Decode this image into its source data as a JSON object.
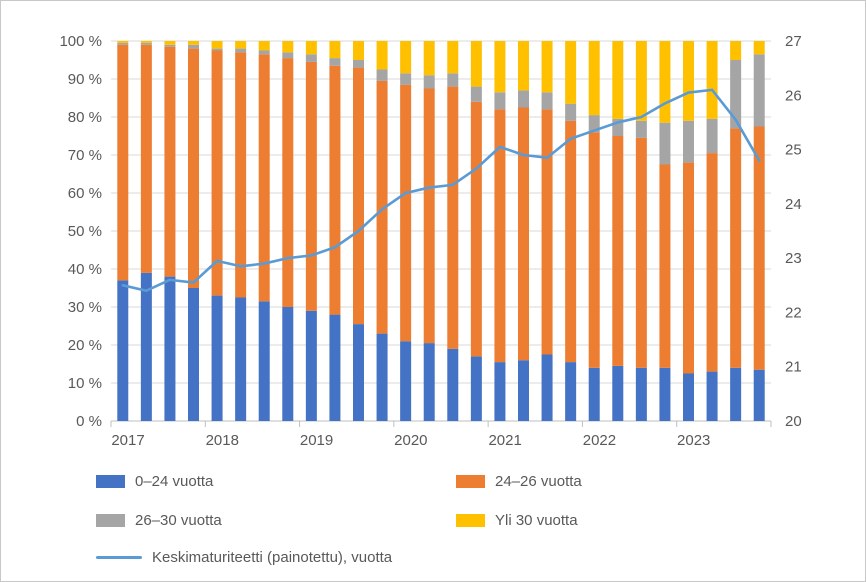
{
  "chart_data": {
    "type": "bar",
    "subtype": "stacked-100-with-secondary-line",
    "title": "",
    "categories": [
      "2017 Q1",
      "2017 Q2",
      "2017 Q3",
      "2017 Q4",
      "2018 Q1",
      "2018 Q2",
      "2018 Q3",
      "2018 Q4",
      "2019 Q1",
      "2019 Q2",
      "2019 Q3",
      "2019 Q4",
      "2020 Q1",
      "2020 Q2",
      "2020 Q3",
      "2020 Q4",
      "2021 Q1",
      "2021 Q2",
      "2021 Q3",
      "2021 Q4",
      "2022 Q1",
      "2022 Q2",
      "2022 Q3",
      "2022 Q4",
      "2023 Q1",
      "2023 Q2",
      "2023 Q3",
      "2023 Q4"
    ],
    "year_labels": [
      "2017",
      "2018",
      "2019",
      "2020",
      "2021",
      "2022",
      "2023"
    ],
    "series": [
      {
        "name": "0–24 vuotta",
        "color": "#4472C4",
        "values": [
          37,
          39,
          38,
          35,
          33,
          32.5,
          31.5,
          30,
          29,
          28,
          25.5,
          23,
          21,
          20.5,
          19,
          17,
          15.5,
          16,
          17.5,
          15.5,
          14,
          14.5,
          14,
          14,
          12.5,
          13,
          14,
          13.5
        ]
      },
      {
        "name": "24–26 vuotta",
        "color": "#ED7D31",
        "values": [
          62,
          60,
          60.5,
          63,
          64.5,
          64.5,
          65,
          65.5,
          65.5,
          65.5,
          67.5,
          66.5,
          67.5,
          67,
          69,
          67,
          66.5,
          66.5,
          64.5,
          63.5,
          62,
          60.5,
          60.5,
          53.5,
          55.5,
          57.5,
          63,
          64
        ]
      },
      {
        "name": "26–30 vuotta",
        "color": "#A5A5A5",
        "values": [
          0.5,
          0.5,
          0.5,
          1,
          0.5,
          1,
          1,
          1.5,
          2,
          2,
          2,
          3,
          3,
          3.5,
          3.5,
          4,
          4.5,
          4.5,
          4.5,
          4.5,
          4.5,
          4.5,
          4.5,
          11,
          11,
          9,
          18,
          19
        ]
      },
      {
        "name": "Yli 30 vuotta",
        "color": "#FFC000",
        "values": [
          0.5,
          0.5,
          1,
          1,
          2,
          2,
          2.5,
          3,
          3.5,
          4.5,
          5,
          7.5,
          8.5,
          9,
          8.5,
          12,
          13.5,
          13,
          13.5,
          16.5,
          19.5,
          20.5,
          21,
          21.5,
          21,
          20.5,
          5,
          3.5
        ]
      }
    ],
    "line_series": {
      "name": "Keskimaturiteetti (painotettu), vuotta",
      "color": "#5B9BD5",
      "axis": "right",
      "values": [
        22.5,
        22.4,
        22.6,
        22.55,
        22.95,
        22.85,
        22.9,
        23.0,
        23.05,
        23.2,
        23.5,
        23.9,
        24.2,
        24.3,
        24.35,
        24.65,
        25.05,
        24.9,
        24.85,
        25.2,
        25.35,
        25.5,
        25.6,
        25.85,
        26.05,
        26.1,
        25.55,
        24.8
      ]
    },
    "left_axis": {
      "min": 0,
      "max": 100,
      "tick_labels": [
        "0 %",
        "10 %",
        "20 %",
        "30 %",
        "40 %",
        "50 %",
        "60 %",
        "70 %",
        "80 %",
        "90 %",
        "100 %"
      ]
    },
    "right_axis": {
      "min": 20,
      "max": 27,
      "tick_labels": [
        "20",
        "21",
        "22",
        "23",
        "24",
        "25",
        "26",
        "27"
      ]
    },
    "grid": "horizontal",
    "legend_position": "bottom-left"
  }
}
